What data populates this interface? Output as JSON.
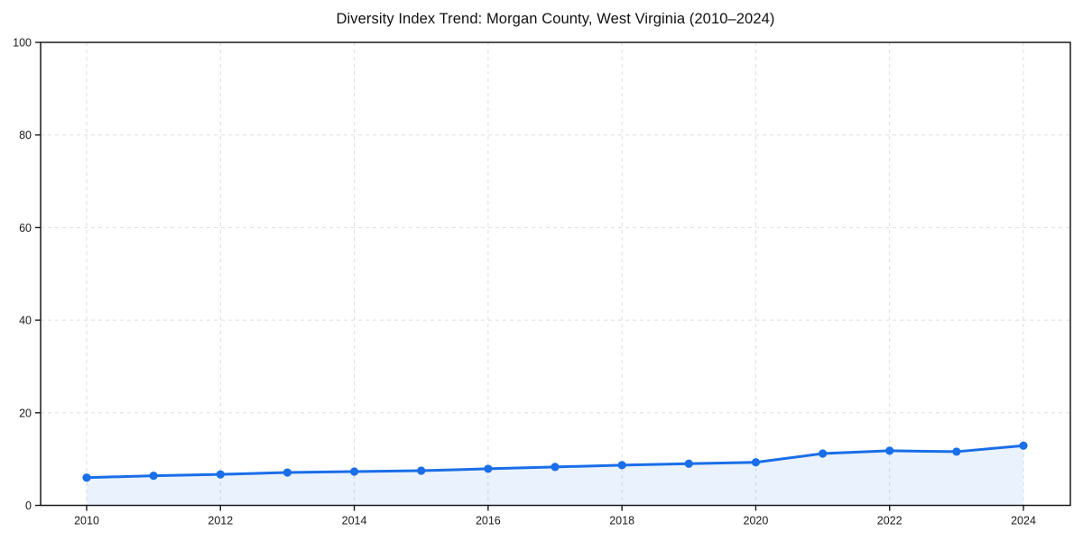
{
  "chart_data": {
    "type": "line",
    "title": "Diversity Index Trend: Morgan County, West Virginia (2010–2024)",
    "xlabel": "",
    "ylabel": "",
    "x": [
      2010,
      2011,
      2012,
      2013,
      2014,
      2015,
      2016,
      2017,
      2018,
      2019,
      2020,
      2021,
      2022,
      2023,
      2024
    ],
    "series": [
      {
        "name": "Diversity Index",
        "values": [
          6.0,
          6.4,
          6.7,
          7.1,
          7.3,
          7.5,
          7.9,
          8.3,
          8.7,
          9.0,
          9.3,
          11.2,
          11.8,
          11.6,
          12.9
        ]
      }
    ],
    "ylim": [
      0,
      100
    ],
    "y_ticks": [
      0,
      20,
      40,
      60,
      80,
      100
    ],
    "x_ticks": [
      2010,
      2012,
      2014,
      2016,
      2018,
      2020,
      2022,
      2024
    ],
    "grid": "dashed",
    "legend_position": "none",
    "line_color": "#1a6ee8",
    "marker": "circle",
    "area_fill": true,
    "fill_opacity": 0.09,
    "grid_color": "#dedede",
    "frame_color": "#1a1a1a",
    "tick_label_color": "#1c1c1c"
  }
}
